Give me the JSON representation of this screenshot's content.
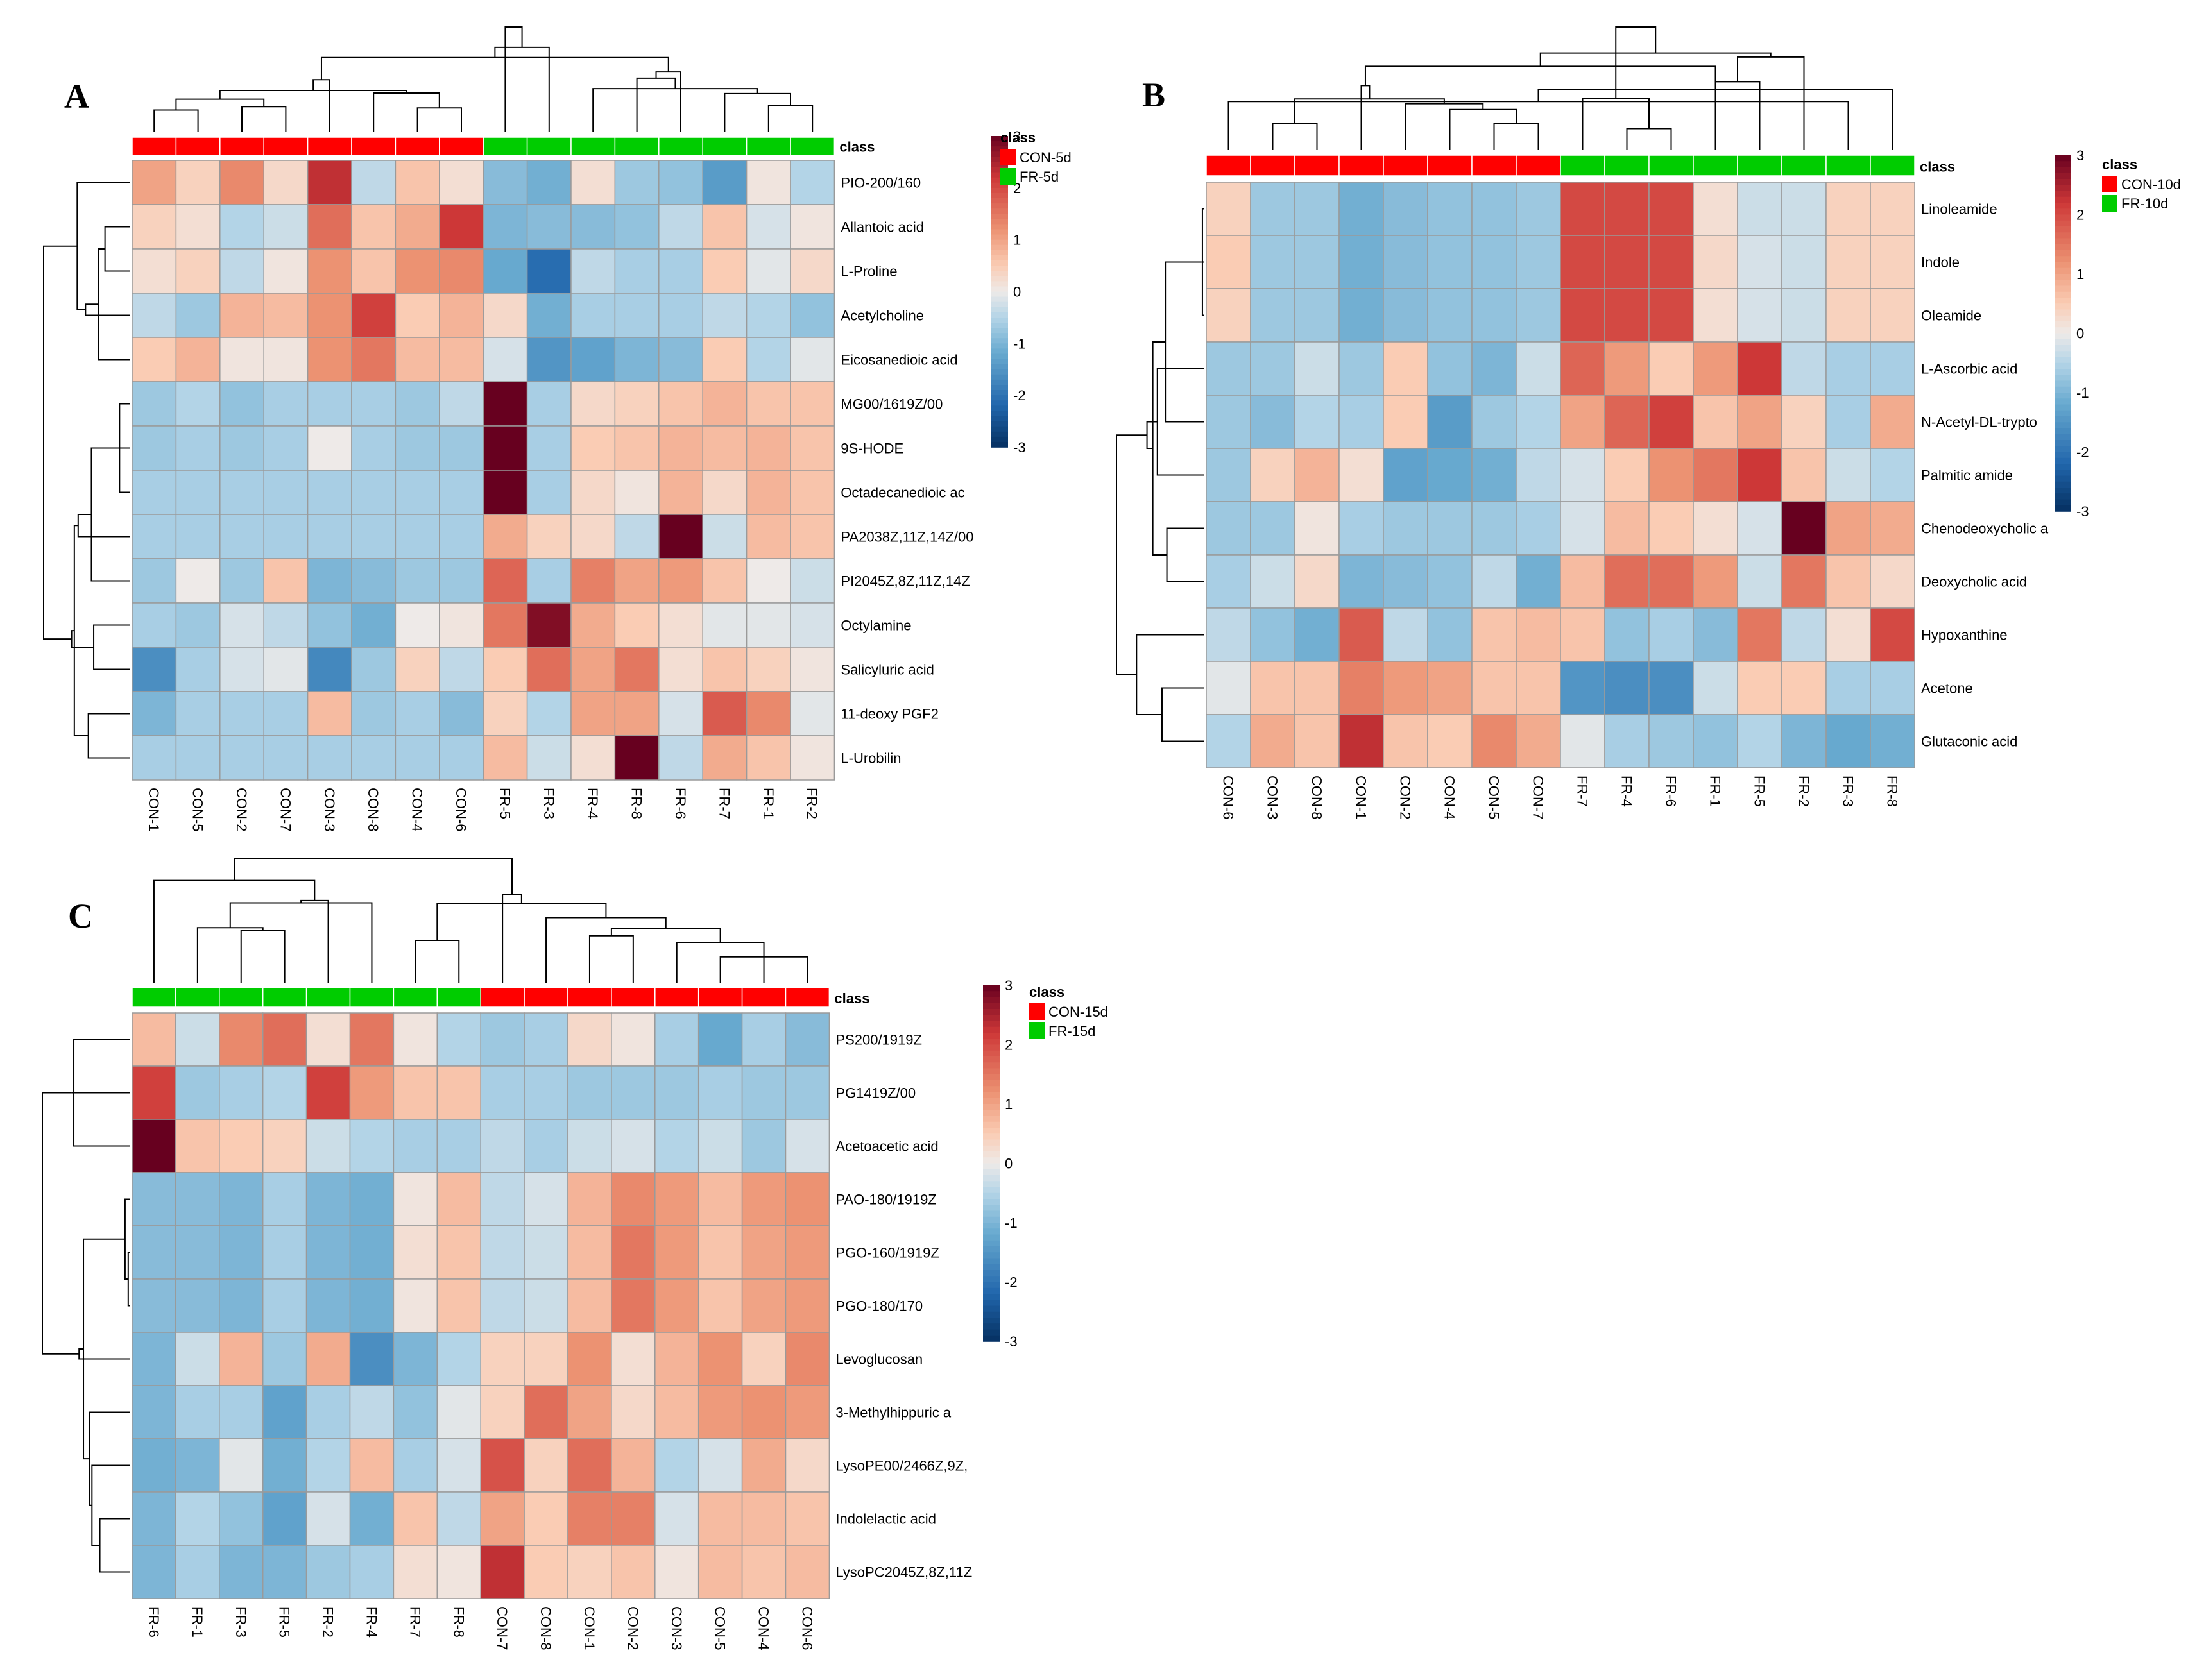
{
  "chart_data": [
    {
      "type": "heatmap",
      "panel": "A",
      "class_header": "class",
      "legend": {
        "title": "class",
        "groups": [
          {
            "name": "CON-5d",
            "color": "#ff0000"
          },
          {
            "name": "FR-5d",
            "color": "#00cc00"
          }
        ]
      },
      "color_scale": {
        "min": -3,
        "max": 3,
        "ticks": [
          "3",
          "2",
          "1",
          "0",
          "-1",
          "-2",
          "-3"
        ],
        "low_color": "#053061",
        "mid_color": "#f7f7f7",
        "high_color": "#67001f"
      },
      "columns": [
        "CON-1",
        "CON-5",
        "CON-2",
        "CON-7",
        "CON-3",
        "CON-8",
        "CON-4",
        "CON-6",
        "FR-5",
        "FR-3",
        "FR-4",
        "FR-8",
        "FR-6",
        "FR-7",
        "FR-1",
        "FR-2"
      ],
      "column_classes": [
        "CON-5d",
        "CON-5d",
        "CON-5d",
        "CON-5d",
        "CON-5d",
        "CON-5d",
        "CON-5d",
        "CON-5d",
        "FR-5d",
        "FR-5d",
        "FR-5d",
        "FR-5d",
        "FR-5d",
        "FR-5d",
        "FR-5d",
        "FR-5d"
      ],
      "rows": [
        "PIO-200/160",
        "Allantoic acid",
        "L-Proline",
        "Acetylcholine",
        "Eicosanedioic acid",
        "MG00/1619Z/00",
        "9S-HODE",
        "Octadecanedioic ac",
        "PA2038Z,11Z,14Z/00",
        "PI2045Z,8Z,11Z,14Z",
        "Octylamine",
        "Salicyluric acid",
        "11-deoxy PGF2",
        "L-Urobilin"
      ],
      "values": [
        [
          1.0,
          0.4,
          1.3,
          0.3,
          2.3,
          -0.4,
          0.6,
          0.2,
          -0.9,
          -1.1,
          0.2,
          -0.7,
          -0.8,
          -1.4,
          0.1,
          -0.5
        ],
        [
          0.4,
          0.2,
          -0.5,
          -0.3,
          1.6,
          0.6,
          0.9,
          2.2,
          -1.0,
          -0.9,
          -0.9,
          -0.8,
          -0.4,
          0.6,
          -0.2,
          0.1
        ],
        [
          0.2,
          0.4,
          -0.4,
          0.1,
          1.2,
          0.6,
          1.2,
          1.3,
          -1.2,
          -2.1,
          -0.4,
          -0.6,
          -0.6,
          0.5,
          -0.1,
          0.3
        ],
        [
          -0.4,
          -0.7,
          0.8,
          0.7,
          1.2,
          2.1,
          0.5,
          0.8,
          0.3,
          -1.1,
          -0.6,
          -0.6,
          -0.6,
          -0.4,
          -0.5,
          -0.8
        ],
        [
          0.5,
          0.8,
          0.1,
          0.1,
          1.2,
          1.5,
          0.7,
          0.7,
          -0.2,
          -1.5,
          -1.3,
          -1.0,
          -0.9,
          0.5,
          -0.5,
          -0.1
        ],
        [
          -0.7,
          -0.5,
          -0.8,
          -0.6,
          -0.6,
          -0.6,
          -0.7,
          -0.4,
          3.2,
          -0.6,
          0.3,
          0.4,
          0.6,
          0.8,
          0.6,
          0.6
        ],
        [
          -0.7,
          -0.6,
          -0.7,
          -0.6,
          0.0,
          -0.6,
          -0.7,
          -0.7,
          3.2,
          -0.6,
          0.5,
          0.6,
          0.8,
          0.7,
          0.8,
          0.6
        ],
        [
          -0.6,
          -0.6,
          -0.6,
          -0.6,
          -0.6,
          -0.6,
          -0.6,
          -0.6,
          3.2,
          -0.6,
          0.3,
          0.1,
          0.8,
          0.3,
          0.8,
          0.6
        ],
        [
          -0.6,
          -0.6,
          -0.6,
          -0.6,
          -0.6,
          -0.6,
          -0.6,
          -0.6,
          0.9,
          0.4,
          0.3,
          -0.4,
          3.2,
          -0.3,
          0.7,
          0.6
        ],
        [
          -0.7,
          0.0,
          -0.7,
          0.6,
          -1.0,
          -0.9,
          -0.7,
          -0.7,
          1.7,
          -0.6,
          1.4,
          1.0,
          1.1,
          0.6,
          0.0,
          -0.3
        ],
        [
          -0.6,
          -0.7,
          -0.2,
          -0.4,
          -0.8,
          -1.1,
          0.0,
          0.1,
          1.5,
          2.8,
          0.9,
          0.5,
          0.2,
          -0.1,
          -0.1,
          -0.2
        ],
        [
          -1.6,
          -0.6,
          -0.2,
          -0.1,
          -1.7,
          -0.7,
          0.4,
          -0.4,
          0.5,
          1.6,
          1.0,
          1.5,
          0.2,
          0.6,
          0.4,
          0.1
        ],
        [
          -1.0,
          -0.6,
          -0.6,
          -0.6,
          0.7,
          -0.7,
          -0.6,
          -0.9,
          0.4,
          -0.5,
          1.0,
          1.0,
          -0.2,
          1.8,
          1.3,
          -0.1
        ],
        [
          -0.6,
          -0.6,
          -0.6,
          -0.6,
          -0.6,
          -0.6,
          -0.6,
          -0.6,
          0.7,
          -0.3,
          0.2,
          3.2,
          -0.4,
          0.9,
          0.6,
          0.1
        ]
      ]
    },
    {
      "type": "heatmap",
      "panel": "B",
      "class_header": "class",
      "legend": {
        "title": "class",
        "groups": [
          {
            "name": "CON-10d",
            "color": "#ff0000"
          },
          {
            "name": "FR-10d",
            "color": "#00cc00"
          }
        ]
      },
      "color_scale": {
        "min": -3,
        "max": 3,
        "ticks": [
          "3",
          "2",
          "1",
          "0",
          "-1",
          "-2",
          "-3"
        ],
        "low_color": "#053061",
        "mid_color": "#f7f7f7",
        "high_color": "#67001f"
      },
      "columns": [
        "CON-6",
        "CON-3",
        "CON-8",
        "CON-1",
        "CON-2",
        "CON-4",
        "CON-5",
        "CON-7",
        "FR-7",
        "FR-4",
        "FR-6",
        "FR-1",
        "FR-5",
        "FR-2",
        "FR-3",
        "FR-8"
      ],
      "column_classes": [
        "CON-10d",
        "CON-10d",
        "CON-10d",
        "CON-10d",
        "CON-10d",
        "CON-10d",
        "CON-10d",
        "CON-10d",
        "FR-10d",
        "FR-10d",
        "FR-10d",
        "FR-10d",
        "FR-10d",
        "FR-10d",
        "FR-10d",
        "FR-10d"
      ],
      "rows": [
        "Linoleamide",
        "Indole",
        "Oleamide",
        "L-Ascorbic acid",
        "N-Acetyl-DL-trypto",
        "Palmitic amide",
        "Chenodeoxycholic a",
        "Deoxycholic acid",
        "Hypoxanthine",
        "Acetone",
        "Glutaconic acid"
      ],
      "values": [
        [
          0.4,
          -0.7,
          -0.7,
          -1.1,
          -0.9,
          -0.8,
          -0.8,
          -0.7,
          2.0,
          2.0,
          2.0,
          0.2,
          -0.3,
          -0.3,
          0.4,
          0.4
        ],
        [
          0.5,
          -0.7,
          -0.7,
          -1.1,
          -0.9,
          -0.8,
          -0.8,
          -0.7,
          2.0,
          2.0,
          2.0,
          0.3,
          -0.2,
          -0.3,
          0.4,
          0.4
        ],
        [
          0.4,
          -0.7,
          -0.7,
          -1.1,
          -0.9,
          -0.8,
          -0.8,
          -0.7,
          2.0,
          2.0,
          2.0,
          0.2,
          -0.2,
          -0.3,
          0.4,
          0.4
        ],
        [
          -0.7,
          -0.7,
          -0.3,
          -0.7,
          0.5,
          -0.8,
          -1.0,
          -0.3,
          1.7,
          1.1,
          0.5,
          1.1,
          2.2,
          -0.4,
          -0.6,
          -0.6
        ],
        [
          -0.7,
          -0.9,
          -0.5,
          -0.6,
          0.5,
          -1.4,
          -0.7,
          -0.5,
          1.0,
          1.7,
          2.1,
          0.6,
          1.0,
          0.4,
          -0.6,
          0.9
        ],
        [
          -0.7,
          0.4,
          0.8,
          0.2,
          -1.3,
          -1.2,
          -1.1,
          -0.4,
          -0.2,
          0.5,
          1.2,
          1.5,
          2.2,
          0.6,
          -0.3,
          -0.5
        ],
        [
          -0.7,
          -0.7,
          0.1,
          -0.6,
          -0.7,
          -0.7,
          -0.7,
          -0.6,
          -0.2,
          0.7,
          0.5,
          0.2,
          -0.2,
          3.2,
          1.0,
          0.9
        ],
        [
          -0.6,
          -0.3,
          0.3,
          -1.0,
          -0.9,
          -0.8,
          -0.4,
          -1.1,
          0.7,
          1.6,
          1.6,
          1.1,
          -0.3,
          1.5,
          0.6,
          0.3
        ],
        [
          -0.4,
          -0.8,
          -1.1,
          1.8,
          -0.4,
          -0.8,
          0.6,
          0.7,
          0.6,
          -0.8,
          -0.6,
          -0.9,
          1.5,
          -0.4,
          0.2,
          2.0
        ],
        [
          -0.1,
          0.6,
          0.6,
          1.4,
          1.1,
          1.0,
          0.6,
          0.6,
          -1.5,
          -1.6,
          -1.6,
          -0.3,
          0.5,
          0.5,
          -0.6,
          -0.6
        ],
        [
          -0.5,
          0.9,
          0.6,
          2.3,
          0.6,
          0.5,
          1.3,
          0.9,
          -0.1,
          -0.6,
          -0.7,
          -0.8,
          -0.5,
          -1.0,
          -1.2,
          -1.1
        ]
      ]
    },
    {
      "type": "heatmap",
      "panel": "C",
      "class_header": "class",
      "legend": {
        "title": "class",
        "groups": [
          {
            "name": "CON-15d",
            "color": "#ff0000"
          },
          {
            "name": "FR-15d",
            "color": "#00cc00"
          }
        ]
      },
      "color_scale": {
        "min": -3,
        "max": 3,
        "ticks": [
          "3",
          "2",
          "1",
          "0",
          "-1",
          "-2",
          "-3"
        ],
        "low_color": "#053061",
        "mid_color": "#f7f7f7",
        "high_color": "#67001f"
      },
      "columns": [
        "FR-6",
        "FR-1",
        "FR-3",
        "FR-5",
        "FR-2",
        "FR-4",
        "FR-7",
        "FR-8",
        "CON-7",
        "CON-8",
        "CON-1",
        "CON-2",
        "CON-3",
        "CON-5",
        "CON-4",
        "CON-6"
      ],
      "column_classes": [
        "FR-15d",
        "FR-15d",
        "FR-15d",
        "FR-15d",
        "FR-15d",
        "FR-15d",
        "FR-15d",
        "FR-15d",
        "CON-15d",
        "CON-15d",
        "CON-15d",
        "CON-15d",
        "CON-15d",
        "CON-15d",
        "CON-15d",
        "CON-15d"
      ],
      "rows": [
        "PS200/1919Z",
        "PG1419Z/00",
        "Acetoacetic acid",
        "PAO-180/1919Z",
        "PGO-160/1919Z",
        "PGO-180/170",
        "Levoglucosan",
        "3-Methylhippuric a",
        "LysoPE00/2466Z,9Z,",
        "Indolelactic acid",
        "LysoPC2045Z,8Z,11Z"
      ],
      "values": [
        [
          0.7,
          -0.3,
          1.3,
          1.6,
          0.2,
          1.5,
          0.1,
          -0.5,
          -0.7,
          -0.6,
          0.3,
          0.1,
          -0.6,
          -1.2,
          -0.6,
          -0.9
        ],
        [
          2.1,
          -0.7,
          -0.6,
          -0.5,
          2.1,
          1.1,
          0.6,
          0.6,
          -0.6,
          -0.6,
          -0.7,
          -0.7,
          -0.7,
          -0.6,
          -0.7,
          -0.7
        ],
        [
          3.2,
          0.6,
          0.5,
          0.4,
          -0.3,
          -0.5,
          -0.6,
          -0.6,
          -0.4,
          -0.6,
          -0.3,
          -0.2,
          -0.5,
          -0.3,
          -0.7,
          -0.2
        ],
        [
          -0.9,
          -0.9,
          -1.0,
          -0.6,
          -1.0,
          -1.1,
          0.1,
          0.7,
          -0.4,
          -0.2,
          0.8,
          1.3,
          1.1,
          0.7,
          1.1,
          1.2
        ],
        [
          -0.9,
          -0.9,
          -1.0,
          -0.6,
          -1.0,
          -1.1,
          0.2,
          0.6,
          -0.4,
          -0.3,
          0.7,
          1.5,
          1.1,
          0.6,
          1.0,
          1.1
        ],
        [
          -0.9,
          -0.9,
          -1.0,
          -0.6,
          -1.0,
          -1.1,
          0.1,
          0.6,
          -0.4,
          -0.3,
          0.7,
          1.5,
          1.1,
          0.6,
          1.0,
          1.1
        ],
        [
          -1.0,
          -0.3,
          0.8,
          -0.7,
          0.9,
          -1.6,
          -1.0,
          -0.5,
          0.4,
          0.4,
          1.2,
          0.2,
          0.8,
          1.2,
          0.4,
          1.3
        ],
        [
          -1.0,
          -0.6,
          -0.6,
          -1.3,
          -0.6,
          -0.4,
          -0.8,
          -0.1,
          0.4,
          1.6,
          1.0,
          0.3,
          0.7,
          1.1,
          1.2,
          1.1
        ],
        [
          -1.1,
          -1.0,
          -0.1,
          -1.1,
          -0.5,
          0.7,
          -0.6,
          -0.2,
          1.9,
          0.4,
          1.6,
          0.8,
          -0.5,
          -0.2,
          0.9,
          0.3
        ],
        [
          -1.0,
          -0.5,
          -0.8,
          -1.3,
          -0.2,
          -1.1,
          0.6,
          -0.4,
          1.0,
          0.5,
          1.4,
          1.4,
          -0.2,
          0.7,
          0.7,
          0.6
        ],
        [
          -1.0,
          -0.6,
          -1.0,
          -1.0,
          -0.7,
          -0.6,
          0.2,
          0.1,
          2.3,
          0.5,
          0.4,
          0.6,
          0.1,
          0.7,
          0.6,
          0.7
        ]
      ]
    }
  ]
}
